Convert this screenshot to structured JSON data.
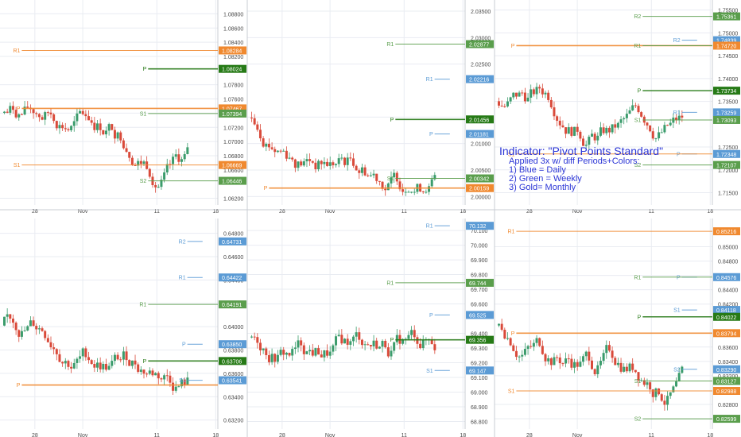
{
  "annotation": {
    "title": "Indicator: \"Pivot Points Standard\"",
    "lines": [
      "Applied 3x w/ diff Periods+Colors:",
      "1) Blue = Daily",
      "2) Green = Weekly",
      "3) Gold= Monthly"
    ]
  },
  "colors": {
    "up": "#3b9c6c",
    "down": "#d94a3a",
    "daily": "#5b9bd5",
    "weekly": "#5a9e4c",
    "monthly": "#f0892f",
    "weekly_pivot": "#267a16",
    "grid": "#e9ecf2",
    "axis_text": "#4a4a4a"
  },
  "x_labels": [
    "28",
    "Nov",
    "11",
    "18"
  ],
  "charts": [
    {
      "id": "chart-1",
      "ticks": [
        "1.08800",
        "1.08600",
        "1.08400",
        "1.08200",
        "1.07800",
        "1.07600",
        "1.07400",
        "1.07200",
        "1.07000",
        "1.06800",
        "1.06600",
        "1.06200"
      ],
      "yrange": [
        1.0615,
        1.0895
      ],
      "levels": [
        {
          "label": "R1",
          "value": 1.08284,
          "text": "1.08284",
          "type": "monthly"
        },
        {
          "label": "P",
          "value": 1.08024,
          "text": "1.08024",
          "type": "weekly_pivot"
        },
        {
          "label": "P",
          "value": 1.07467,
          "text": "1.07467",
          "type": "monthly"
        },
        {
          "label": "S1",
          "value": 1.07394,
          "text": "1.07394",
          "type": "weekly"
        },
        {
          "label": "S1",
          "value": 1.06669,
          "text": "1.06669",
          "type": "monthly"
        },
        {
          "label": "S2",
          "value": 1.06446,
          "text": "1.06446",
          "type": "weekly"
        }
      ]
    },
    {
      "id": "chart-2",
      "ticks": [
        "2.03500",
        "2.03000",
        "2.02500",
        "2.01500",
        "2.01000",
        "2.00500",
        "2.00000"
      ],
      "yrange": [
        1.999,
        2.0365
      ],
      "levels": [
        {
          "label": "R1",
          "value": 2.02877,
          "text": "2.02877",
          "type": "weekly"
        },
        {
          "label": "R1",
          "value": 2.02216,
          "text": "2.02216",
          "type": "daily"
        },
        {
          "label": "P",
          "value": 2.01456,
          "text": "2.01456",
          "type": "weekly_pivot"
        },
        {
          "label": "P",
          "value": 2.01181,
          "text": "2.01181",
          "type": "daily"
        },
        {
          "label": "S1",
          "value": 2.00342,
          "text": "2.00342",
          "type": "weekly"
        },
        {
          "label": "P",
          "value": 2.00159,
          "text": "2.00159",
          "type": "monthly"
        }
      ]
    },
    {
      "id": "chart-3",
      "ticks": [
        "1.75500",
        "1.75000",
        "1.74500",
        "1.74000",
        "1.73500",
        "1.72500",
        "1.72000",
        "1.71500"
      ],
      "yrange": [
        1.713,
        1.7565
      ],
      "levels": [
        {
          "label": "R2",
          "value": 1.75361,
          "text": "1.75361",
          "type": "weekly"
        },
        {
          "label": "R2",
          "value": 1.74839,
          "text": "1.74839",
          "type": "daily"
        },
        {
          "label": "P",
          "value": 1.7472,
          "text": "1.74720",
          "type": "monthly"
        },
        {
          "label": "R1",
          "value": 1.7472,
          "text": "",
          "type": "weekly"
        },
        {
          "label": "P",
          "value": 1.73734,
          "text": "1.73734",
          "type": "weekly_pivot"
        },
        {
          "label": "R1",
          "value": 1.73259,
          "text": "1.73259",
          "type": "daily"
        },
        {
          "label": "S1",
          "value": 1.73093,
          "text": "1.73093",
          "type": "weekly"
        },
        {
          "label": "P",
          "value": 1.72348,
          "text": "1.72348",
          "type": "daily"
        },
        {
          "label": "S1",
          "value": 1.72348,
          "text": "",
          "type": "monthly"
        },
        {
          "label": "S2",
          "value": 1.72107,
          "text": "1.72107",
          "type": "weekly"
        }
      ]
    },
    {
      "id": "chart-4",
      "ticks": [
        "0.64800",
        "0.64600",
        "0.64400",
        "0.64200",
        "0.64000",
        "0.63800",
        "0.63600",
        "0.63400",
        "0.63200"
      ],
      "yrange": [
        0.6315,
        0.649
      ],
      "levels": [
        {
          "label": "R2",
          "value": 0.64731,
          "text": "0.64731",
          "type": "daily"
        },
        {
          "label": "R1",
          "value": 0.64422,
          "text": "0.64422",
          "type": "daily"
        },
        {
          "label": "R1",
          "value": 0.64191,
          "text": "0.64191",
          "type": "weekly"
        },
        {
          "label": "P",
          "value": 0.6385,
          "text": "0.63850",
          "type": "daily"
        },
        {
          "label": "P",
          "value": 0.63706,
          "text": "0.63706",
          "type": "weekly_pivot"
        },
        {
          "label": "S1",
          "value": 0.63541,
          "text": "0.63541",
          "type": "daily"
        },
        {
          "label": "P",
          "value": 0.635,
          "text": "",
          "type": "monthly"
        }
      ]
    },
    {
      "id": "chart-5",
      "ticks": [
        "70.100",
        "70.000",
        "69.900",
        "69.800",
        "69.700",
        "69.600",
        "69.400",
        "69.300",
        "69.200",
        "69.100",
        "69.000",
        "68.900",
        "68.800"
      ],
      "yrange": [
        68.77,
        70.16
      ],
      "levels": [
        {
          "label": "R1",
          "value": 70.132,
          "text": "70.132",
          "type": "daily"
        },
        {
          "label": "R1",
          "value": 69.744,
          "text": "69.744",
          "type": "weekly"
        },
        {
          "label": "P",
          "value": 69.525,
          "text": "69.525",
          "type": "daily"
        },
        {
          "label": "P",
          "value": 69.356,
          "text": "69.356",
          "type": "weekly_pivot"
        },
        {
          "label": "S1",
          "value": 69.147,
          "text": "69.147",
          "type": "daily"
        }
      ]
    },
    {
      "id": "chart-6",
      "ticks": [
        "0.85000",
        "0.84800",
        "0.84600",
        "0.84400",
        "0.84200",
        "0.83600",
        "0.83400",
        "0.83200",
        "0.82800",
        "0.82600"
      ],
      "yrange": [
        0.825,
        0.8535
      ],
      "levels": [
        {
          "label": "R1",
          "value": 0.85216,
          "text": "0.85216",
          "type": "monthly"
        },
        {
          "label": "P",
          "value": 0.84576,
          "text": "0.84576",
          "type": "daily"
        },
        {
          "label": "R1",
          "value": 0.84576,
          "text": "",
          "type": "weekly"
        },
        {
          "label": "S1",
          "value": 0.84118,
          "text": "0.84118",
          "type": "daily"
        },
        {
          "label": "P",
          "value": 0.84022,
          "text": "0.84022",
          "type": "weekly_pivot"
        },
        {
          "label": "P",
          "value": 0.83794,
          "text": "0.83794",
          "type": "monthly"
        },
        {
          "label": "S2",
          "value": 0.8329,
          "text": "0.83290",
          "type": "daily"
        },
        {
          "label": "S1",
          "value": 0.83127,
          "text": "0.83127",
          "type": "weekly"
        },
        {
          "label": "S1",
          "value": 0.82988,
          "text": "0.82988",
          "type": "monthly"
        },
        {
          "label": "S2",
          "value": 0.82599,
          "text": "0.82599",
          "type": "weekly"
        }
      ]
    }
  ]
}
